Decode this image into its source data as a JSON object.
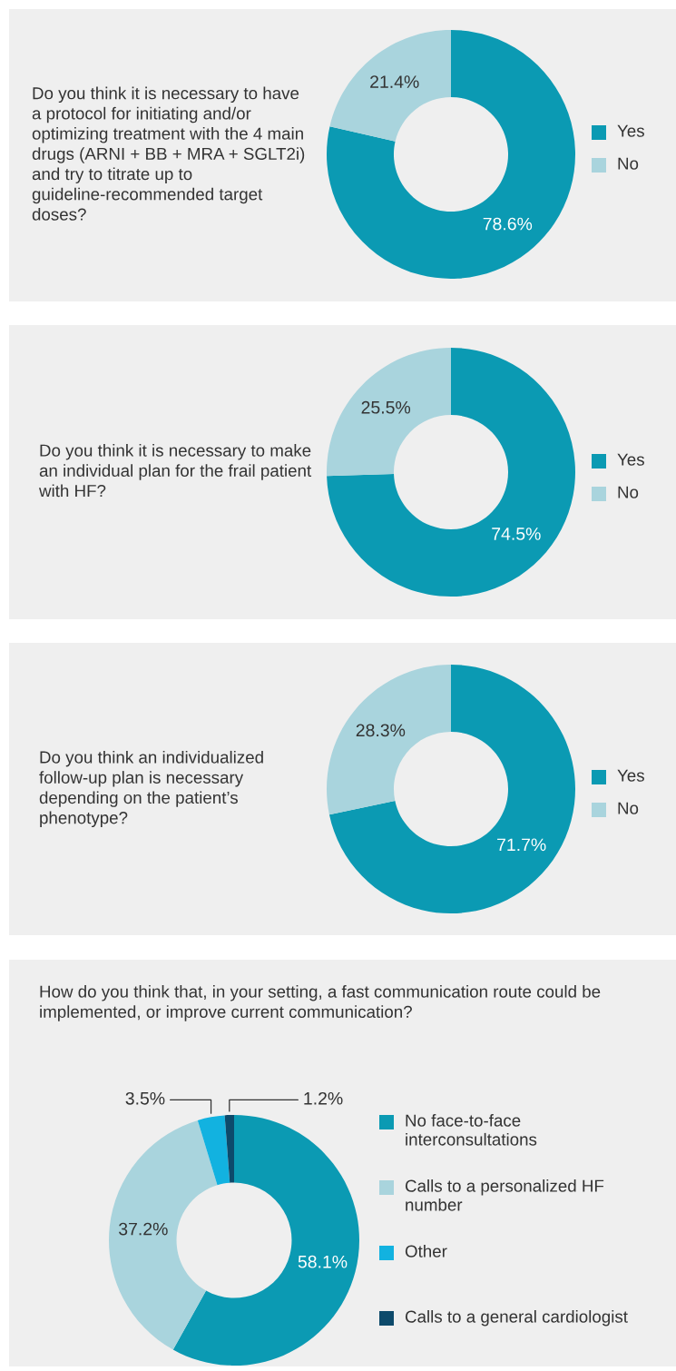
{
  "chart_data": [
    {
      "type": "donut",
      "title": "Do you think it is necessary to have a protocol for initiating and/or optimizing treatment with the 4 main drugs (ARNI + BB + MRA + SGLT2i) and try to titrate up to guideline-recommended target doses?",
      "categories": [
        "Yes",
        "No"
      ],
      "values": [
        78.6,
        21.4
      ],
      "value_labels": [
        "78.6%",
        "21.4%"
      ],
      "colors": [
        "#0b9ab3",
        "#a9d4dd"
      ],
      "legend": "right"
    },
    {
      "type": "donut",
      "title": "Do you think it is necessary to make an individual plan for the frail patient with HF?",
      "categories": [
        "Yes",
        "No"
      ],
      "values": [
        74.5,
        25.5
      ],
      "value_labels": [
        "74.5%",
        "25.5%"
      ],
      "colors": [
        "#0b9ab3",
        "#a9d4dd"
      ],
      "legend": "right"
    },
    {
      "type": "donut",
      "title": "Do you think an individualized follow-up plan is necessary depending on the patient’s phenotype?",
      "categories": [
        "Yes",
        "No"
      ],
      "values": [
        71.7,
        28.3
      ],
      "value_labels": [
        "71.7%",
        "28.3%"
      ],
      "colors": [
        "#0b9ab3",
        "#a9d4dd"
      ],
      "legend": "right"
    },
    {
      "type": "donut",
      "title": "How do you think that, in your setting, a fast communication route could be implemented, or improve current communication?",
      "categories": [
        "No face-to-face interconsultations",
        "Calls to a personalized HF number",
        "Other",
        "Calls to a general cardiologist"
      ],
      "values": [
        58.1,
        37.2,
        3.5,
        1.2
      ],
      "value_labels": [
        "58.1%",
        "37.2%",
        "3.5%",
        "1.2%"
      ],
      "colors": [
        "#0b9ab3",
        "#a9d4dd",
        "#12b2e0",
        "#0d4a6b"
      ],
      "legend": "right"
    }
  ]
}
